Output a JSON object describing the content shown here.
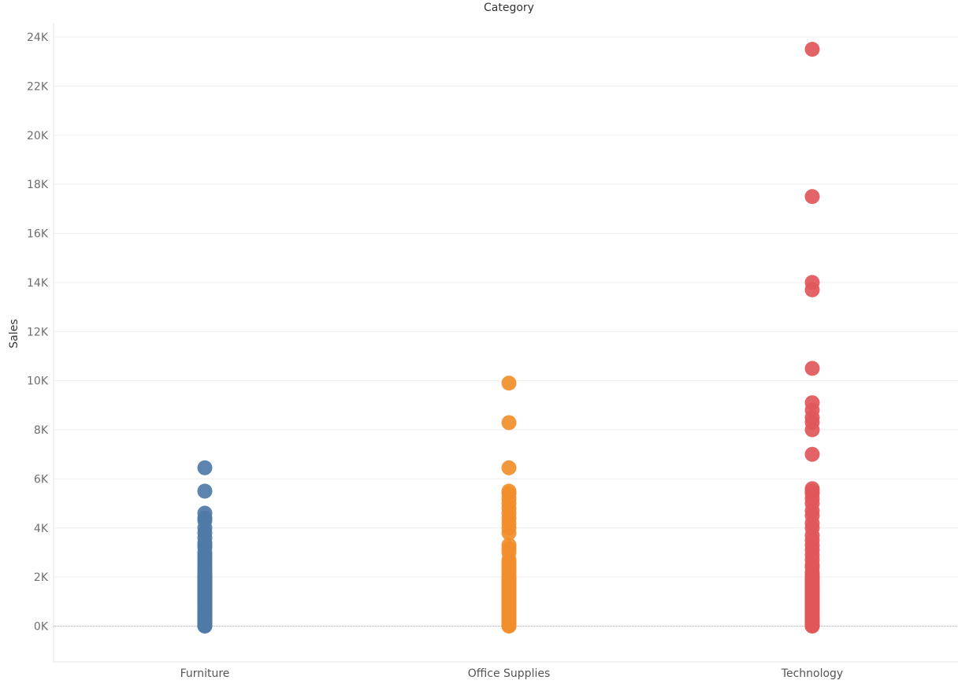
{
  "colors": {
    "Furniture": "#4e79a7",
    "Office Supplies": "#f28e2b",
    "Technology": "#e15759",
    "gridline": "#eeeeee",
    "zero_line": "#a8a8a8",
    "tick_text": "#6e6e6e",
    "title_text": "#333333"
  },
  "chart_data": {
    "type": "scatter",
    "title": "",
    "xlabel": "Category",
    "ylabel": "Sales",
    "x_axis_position": "top",
    "grid": true,
    "ylim": [
      -1500,
      25000
    ],
    "yticks": [
      0,
      2000,
      4000,
      6000,
      8000,
      10000,
      12000,
      14000,
      16000,
      18000,
      20000,
      22000,
      24000
    ],
    "ytick_labels": [
      "0K",
      "2K",
      "4K",
      "6K",
      "8K",
      "10K",
      "12K",
      "14K",
      "16K",
      "18K",
      "20K",
      "22K",
      "24K"
    ],
    "categories": [
      "Furniture",
      "Office Supplies",
      "Technology"
    ],
    "series": [
      {
        "category": "Furniture",
        "values": [
          0,
          30,
          60,
          100,
          150,
          200,
          250,
          300,
          350,
          400,
          450,
          500,
          550,
          600,
          650,
          700,
          750,
          800,
          850,
          900,
          950,
          1000,
          1050,
          1100,
          1150,
          1200,
          1250,
          1300,
          1350,
          1400,
          1450,
          1500,
          1550,
          1600,
          1650,
          1700,
          1750,
          1800,
          1850,
          1900,
          1950,
          2000,
          2050,
          2100,
          2150,
          2200,
          2300,
          2400,
          2500,
          2600,
          2700,
          2800,
          2900,
          3000,
          3200,
          3300,
          3400,
          3600,
          3800,
          4000,
          4300,
          4400,
          4600,
          5500,
          6450
        ]
      },
      {
        "category": "Office Supplies",
        "values": [
          0,
          30,
          60,
          100,
          150,
          200,
          250,
          300,
          350,
          400,
          450,
          500,
          550,
          600,
          650,
          700,
          750,
          800,
          850,
          900,
          950,
          1000,
          1050,
          1100,
          1150,
          1200,
          1250,
          1300,
          1350,
          1400,
          1450,
          1500,
          1550,
          1600,
          1650,
          1700,
          1750,
          1800,
          1850,
          1900,
          1950,
          2000,
          2100,
          2200,
          2300,
          2400,
          2500,
          2600,
          2700,
          3000,
          3150,
          3300,
          3800,
          4000,
          4200,
          4400,
          4600,
          4800,
          5000,
          5200,
          5400,
          5500,
          6450,
          8290,
          9900
        ]
      },
      {
        "category": "Technology",
        "values": [
          0,
          30,
          60,
          100,
          150,
          200,
          250,
          300,
          350,
          400,
          450,
          500,
          550,
          600,
          650,
          700,
          750,
          800,
          850,
          900,
          950,
          1000,
          1050,
          1100,
          1150,
          1200,
          1250,
          1300,
          1350,
          1400,
          1450,
          1500,
          1550,
          1600,
          1650,
          1700,
          1750,
          1800,
          1850,
          1900,
          1950,
          2000,
          2100,
          2200,
          2400,
          2500,
          2700,
          2900,
          3100,
          3300,
          3500,
          3700,
          4000,
          4200,
          4500,
          4700,
          5000,
          5200,
          5400,
          5500,
          5600,
          7000,
          8000,
          8300,
          8500,
          8800,
          9100,
          10500,
          13700,
          14000,
          17500,
          23500
        ]
      }
    ]
  }
}
